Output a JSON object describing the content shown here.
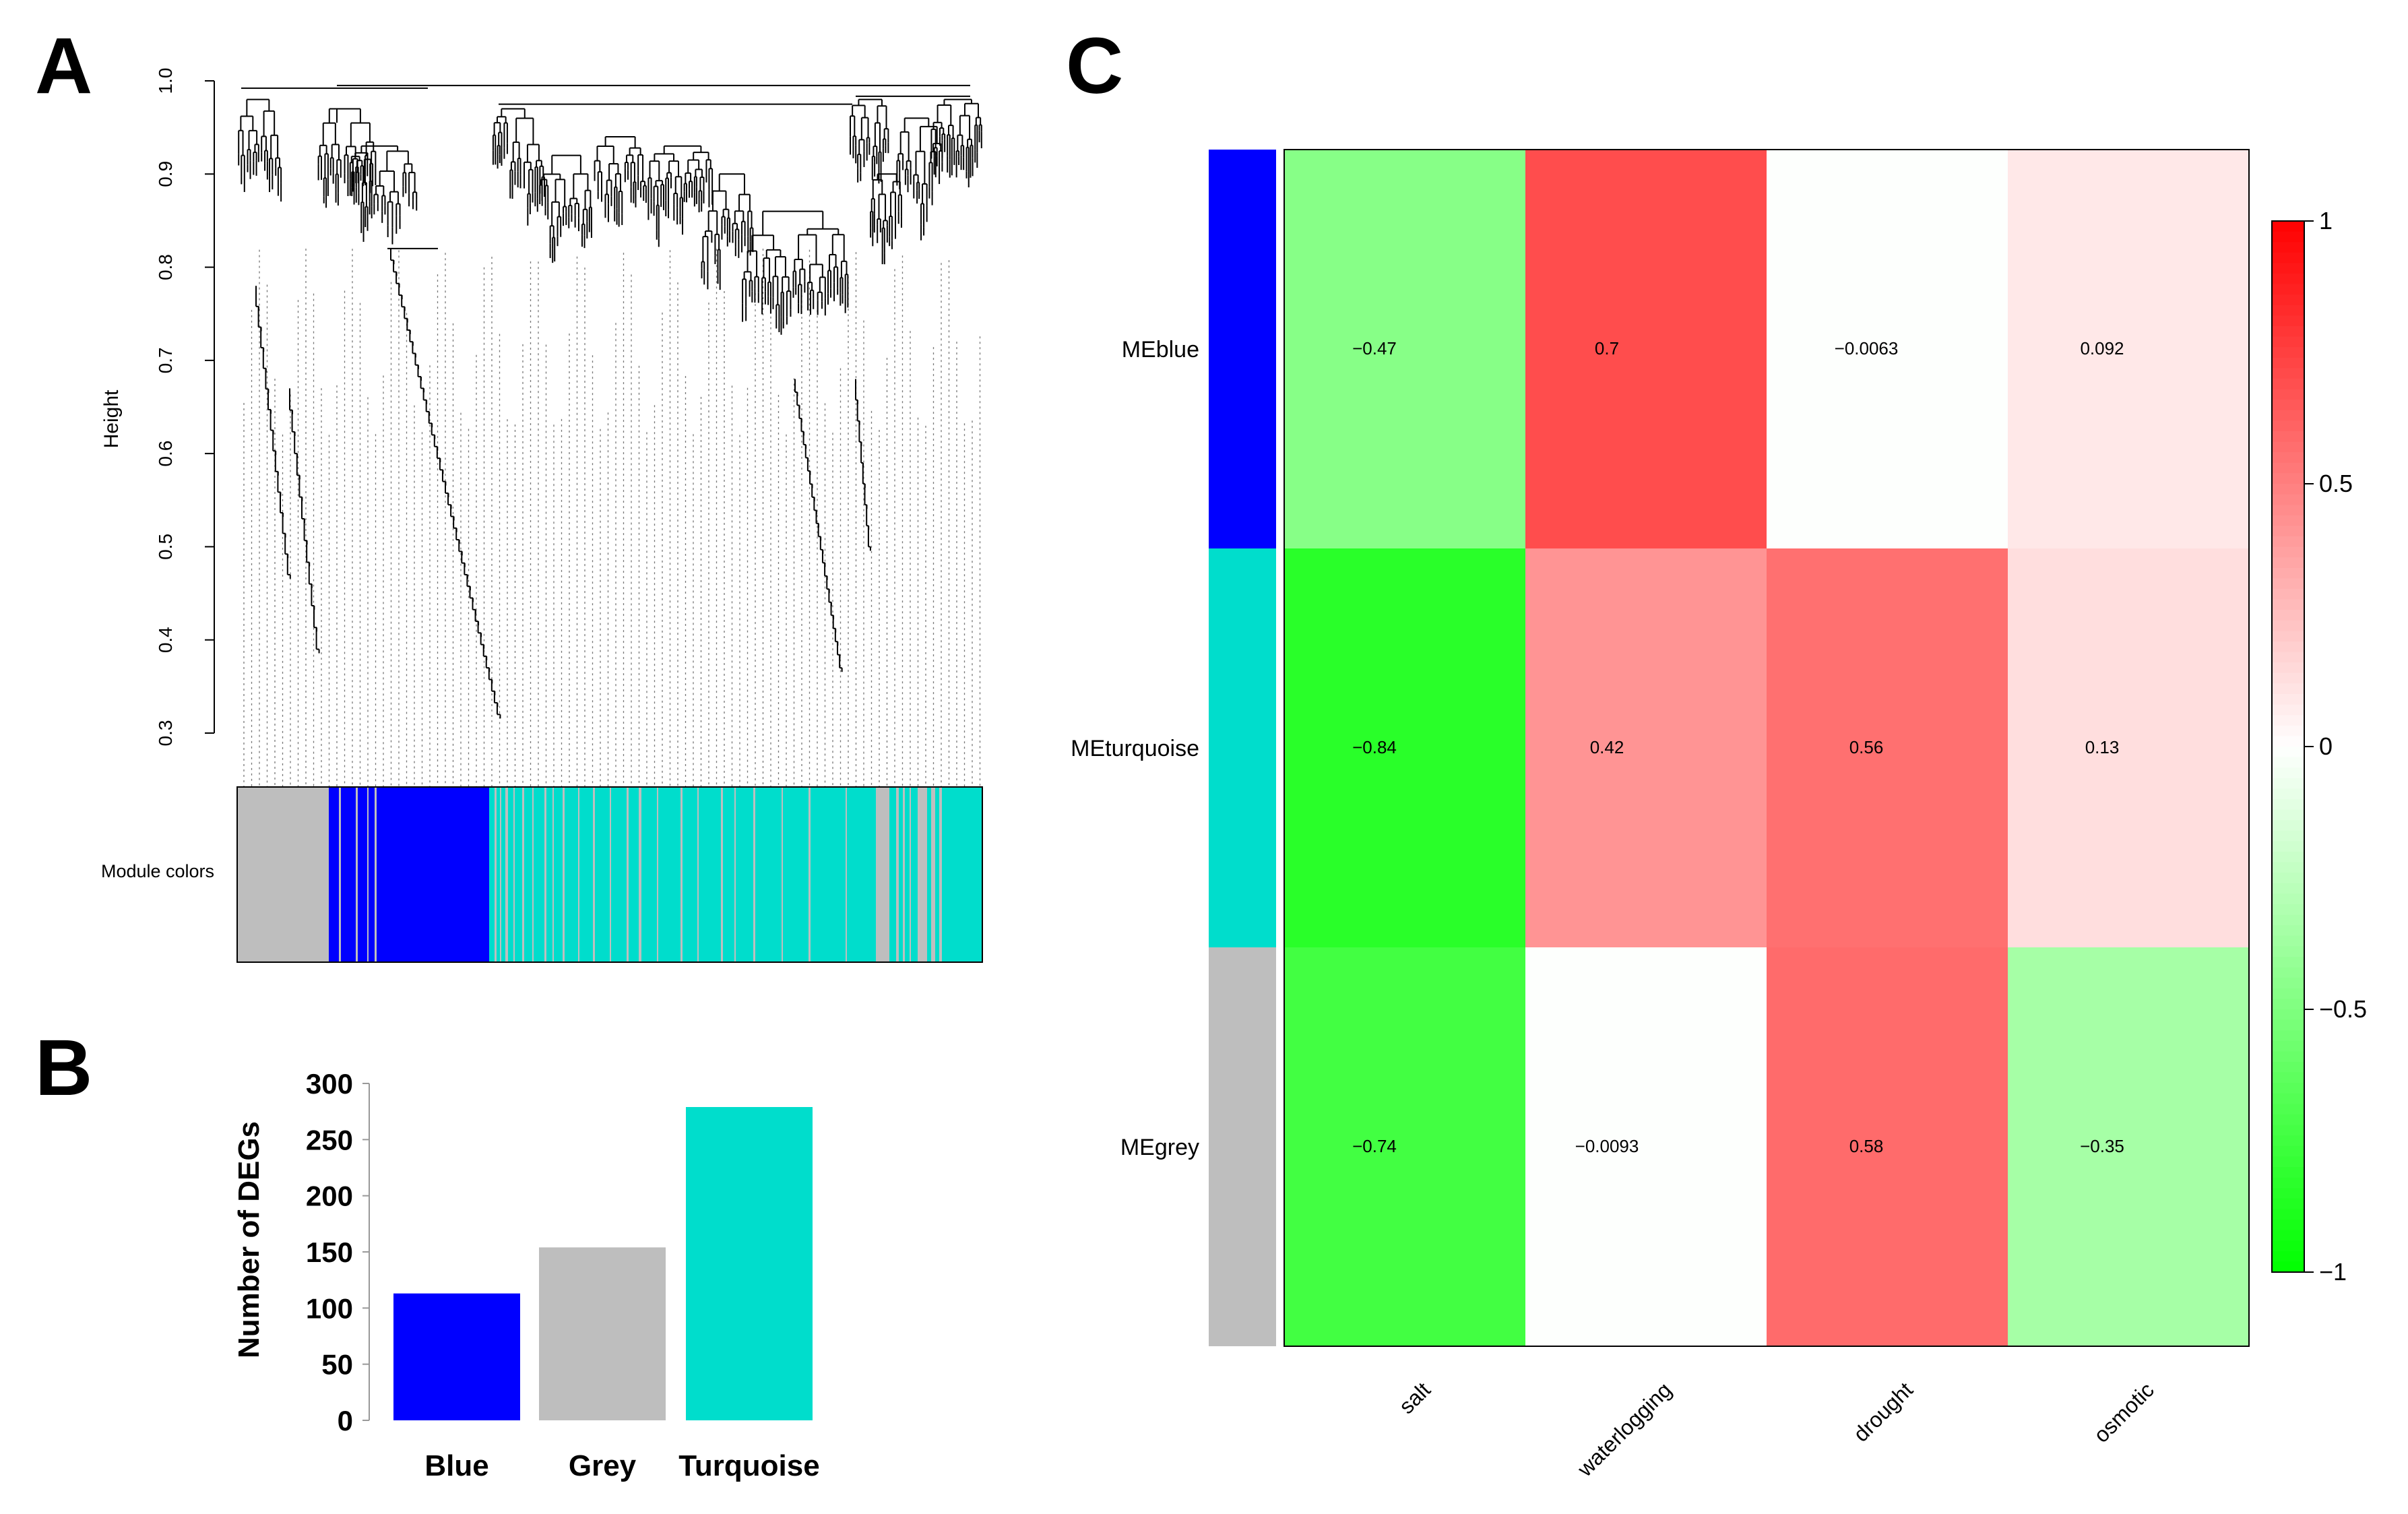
{
  "panels": {
    "a": {
      "label": "A",
      "ylabel": "Height",
      "yticks": [
        "0.3",
        "0.4",
        "0.5",
        "0.6",
        "0.7",
        "0.8",
        "0.9",
        "1.0"
      ],
      "color_bar_label": "Module colors"
    },
    "b": {
      "label": "B"
    },
    "c": {
      "label": "C"
    }
  },
  "colors": {
    "blue": "#0000ff",
    "grey": "#bebebe",
    "turquoise": "#00ddcc"
  },
  "chart_data": [
    {
      "type": "dendrogram",
      "panel": "A",
      "ylabel": "Height",
      "ylim": [
        0.3,
        1.0
      ],
      "module_strip_order": [
        "grey",
        "blue",
        "turquoise"
      ],
      "module_colors_label": "Module colors"
    },
    {
      "type": "bar",
      "panel": "B",
      "categories": [
        "Blue",
        "Grey",
        "Turquoise"
      ],
      "values": [
        113,
        154,
        279
      ],
      "bar_colors": [
        "#0000ff",
        "#bebebe",
        "#00ddcc"
      ],
      "ylabel": "Number of DEGs",
      "ylim": [
        0,
        300
      ],
      "yticks": [
        0,
        50,
        100,
        150,
        200,
        250,
        300
      ]
    },
    {
      "type": "heatmap",
      "panel": "C",
      "rows": [
        "MEblue",
        "MEturquoise",
        "MEgrey"
      ],
      "row_colors": [
        "#0000ff",
        "#00ddcc",
        "#bebebe"
      ],
      "columns": [
        "salt",
        "waterlogging",
        "drought",
        "osmotic"
      ],
      "values": [
        [
          -0.47,
          0.7,
          -0.0063,
          0.092
        ],
        [
          -0.84,
          0.42,
          0.56,
          0.13
        ],
        [
          -0.74,
          -0.0093,
          0.58,
          -0.35
        ]
      ],
      "labels": [
        [
          "−0.47",
          "0.7",
          "−0.0063",
          "0.092"
        ],
        [
          "−0.84",
          "0.42",
          "0.56",
          "0.13"
        ],
        [
          "−0.74",
          "−0.0093",
          "0.58",
          "−0.35"
        ]
      ],
      "colorbar": {
        "range": [
          -1,
          1
        ],
        "ticks": [
          -1,
          -0.5,
          0,
          0.5,
          1
        ],
        "tick_labels": [
          "−1",
          "−0.5",
          "0",
          "0.5",
          "1"
        ]
      }
    }
  ]
}
